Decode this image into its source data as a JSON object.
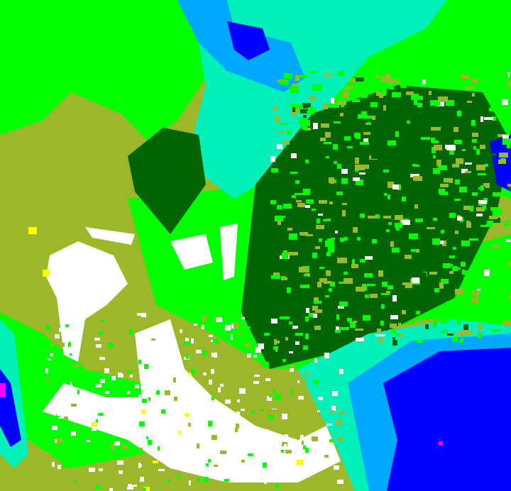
{
  "map": {
    "type": "classified-raster",
    "palette": {
      "olive": "#9ab82a",
      "bright_green": "#00ff00",
      "dark_green": "#006400",
      "aquamarine": "#00f0b8",
      "sky_blue": "#00a8ff",
      "blue": "#0000ff",
      "white": "#ffffff",
      "yellow": "#ffff00",
      "magenta": "#ff00ff"
    }
  }
}
